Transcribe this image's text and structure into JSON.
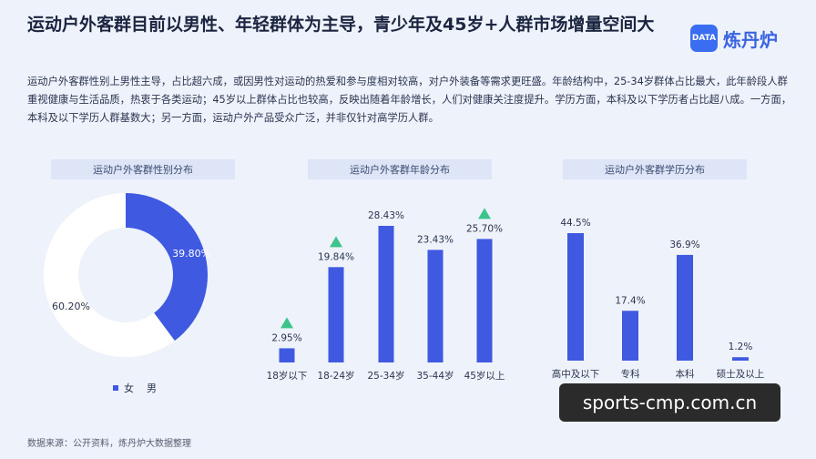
{
  "header": {
    "title": "运动户外客群目前以男性、年轻群体为主导，青少年及45岁+人群市场增量空间大",
    "logo_mark": "DATA",
    "logo_text": "炼丹炉"
  },
  "description": "运动户外客群性别上男性主导，占比超六成，或因男性对运动的热爱和参与度相对较高，对户外装备等需求更旺盛。年龄结构中，25-34岁群体占比最大，此年龄段人群重视健康与生活品质，热衷于各类运动；45岁以上群体占比也较高，反映出随着年龄增长，人们对健康关注度提升。学历方面，本科及以下学历者占比超八成。一方面，本科及以下学历人群基数大；另一方面，运动户外产品受众广泛，并非仅针对高学历人群。",
  "source": "数据来源：公开资料，炼丹炉大数据整理",
  "watermark": "sports-cmp.com.cn",
  "colors": {
    "accent": "#3f5ae0",
    "accent_light": "#7f97f0",
    "ring": "#ffffff",
    "arrow": "#3cc48a"
  },
  "chart_data": [
    {
      "type": "pie",
      "title": "运动户外客群性别分布",
      "categories": [
        "女",
        "男"
      ],
      "values": [
        39.8,
        60.2
      ],
      "labels": [
        "39.80%",
        "60.20%"
      ],
      "legend": [
        "女",
        "男"
      ]
    },
    {
      "type": "bar",
      "title": "运动户外客群年龄分布",
      "categories": [
        "18岁以下",
        "18-24岁",
        "25-34岁",
        "35-44岁",
        "45岁以上"
      ],
      "values": [
        2.95,
        19.84,
        28.43,
        23.43,
        25.7
      ],
      "labels": [
        "2.95%",
        "19.84%",
        "28.43%",
        "23.43%",
        "25.70%"
      ],
      "up_markers": [
        "18岁以下",
        "18-24岁",
        "45岁以上"
      ]
    },
    {
      "type": "bar",
      "title": "运动户外客群学历分布",
      "categories": [
        "高中及以下",
        "专科",
        "本科",
        "硕士及以上"
      ],
      "values": [
        44.5,
        17.4,
        36.9,
        1.2
      ],
      "labels": [
        "44.5%",
        "17.4%",
        "36.9%",
        "1.2%"
      ]
    }
  ]
}
